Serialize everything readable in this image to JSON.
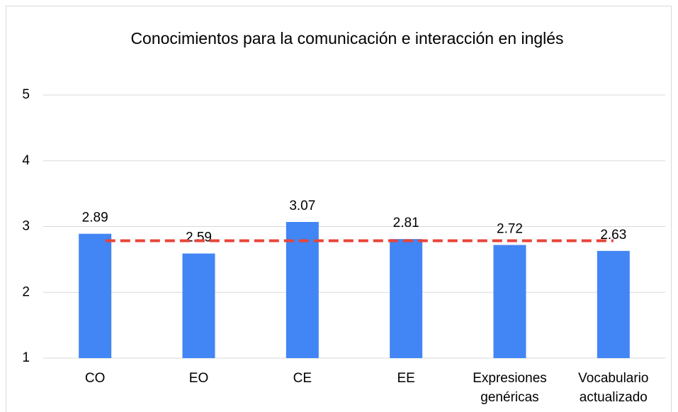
{
  "chart_data": {
    "type": "bar",
    "title": "Conocimientos para la comunicación e interacción en inglés",
    "categories": [
      "CO",
      "EO",
      "CE",
      "EE",
      "Expresiones genéricas",
      "Vocabulario actualizado"
    ],
    "values": [
      2.89,
      2.59,
      3.07,
      2.81,
      2.72,
      2.63
    ],
    "color": "#4285f4",
    "ylim": [
      1,
      5
    ],
    "yticks": [
      1,
      2,
      3,
      4,
      5
    ],
    "grid": true,
    "average_line": {
      "value": 2.785,
      "color": "#e8443a",
      "dashed": true
    }
  }
}
